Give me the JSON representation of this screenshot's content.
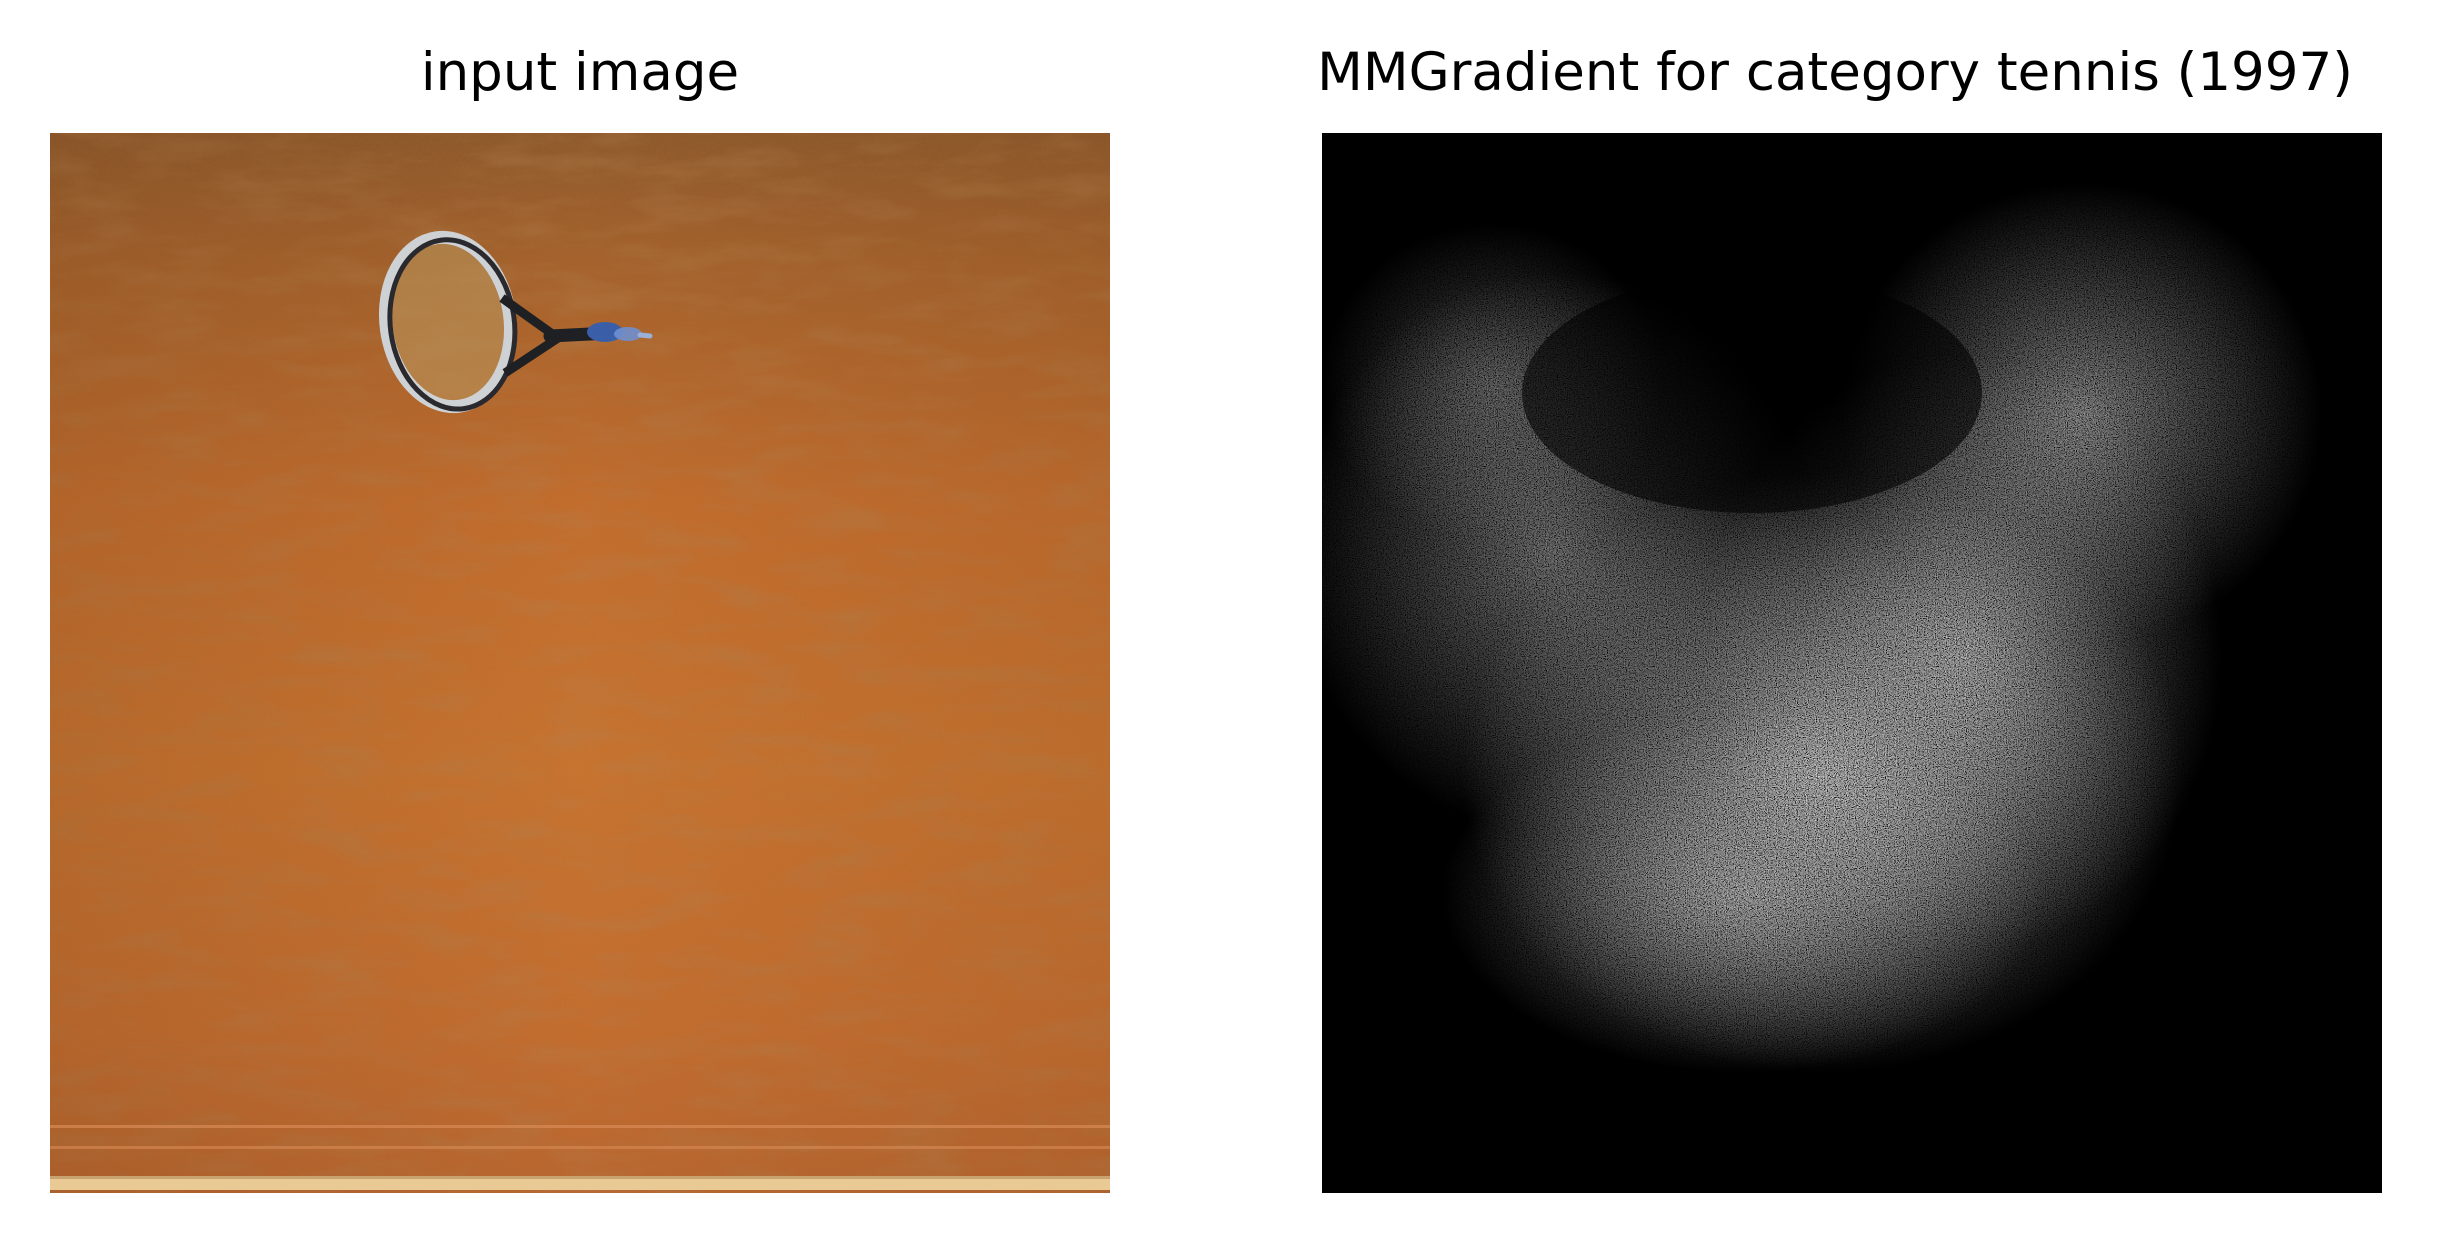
{
  "panels": {
    "left": {
      "title": "input image",
      "content": "clay tennis court with racket"
    },
    "right": {
      "title": "MMGradient for category tennis (1997)",
      "content": "grayscale saliency noise map"
    }
  },
  "colors": {
    "background": "#ffffff",
    "clay": "#c8732f",
    "clay_dark": "#9a5a28",
    "saliency_bg": "#000000",
    "saliency_fg": "#ffffff"
  }
}
